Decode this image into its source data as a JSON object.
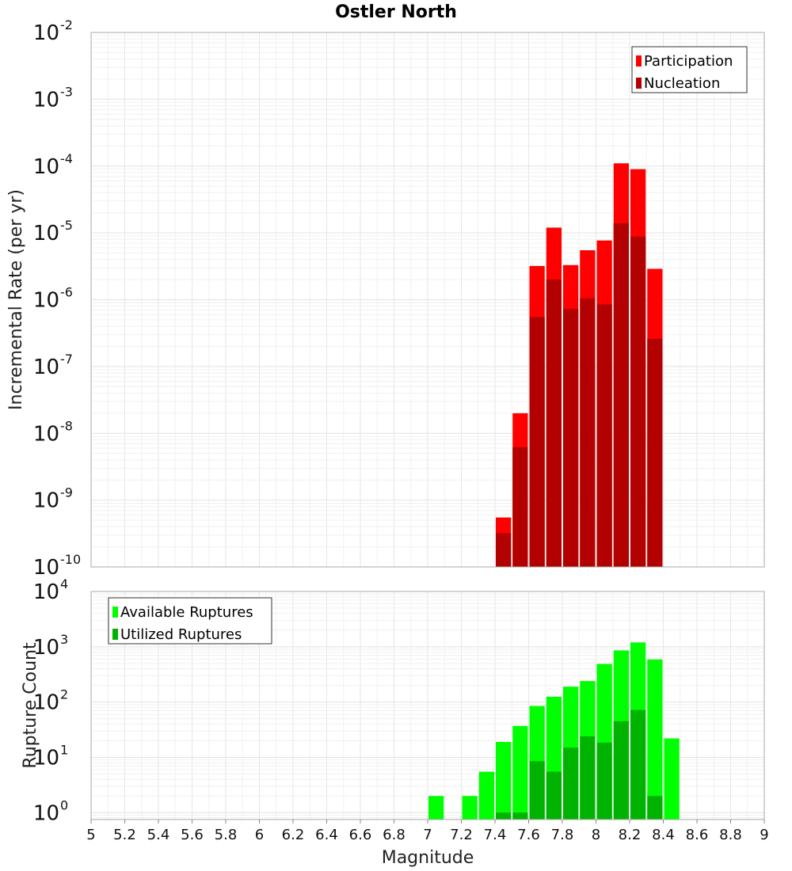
{
  "chart_data": [
    {
      "type": "bar",
      "title": "Ostler North",
      "xlabel": "",
      "ylabel": "Incremental Rate (per yr)",
      "yscale": "log",
      "ylim": [
        1e-10,
        0.01
      ],
      "xlim": [
        5,
        9
      ],
      "grid": true,
      "legend_position": "top-right",
      "yticks": [
        {
          "base": "10",
          "exp": "-10"
        },
        {
          "base": "10",
          "exp": "-9"
        },
        {
          "base": "10",
          "exp": "-8"
        },
        {
          "base": "10",
          "exp": "-7"
        },
        {
          "base": "10",
          "exp": "-6"
        },
        {
          "base": "10",
          "exp": "-5"
        },
        {
          "base": "10",
          "exp": "-4"
        },
        {
          "base": "10",
          "exp": "-3"
        },
        {
          "base": "10",
          "exp": "-2"
        }
      ],
      "x": [
        7.45,
        7.55,
        7.65,
        7.75,
        7.85,
        7.95,
        8.05,
        8.15,
        8.25,
        8.35
      ],
      "series": [
        {
          "name": "Participation",
          "color": "#ff0000",
          "values": [
            5.5e-10,
            2e-08,
            3.2e-06,
            1.2e-05,
            3.3e-06,
            5.5e-06,
            7.7e-06,
            0.00011,
            9e-05,
            2.9e-06
          ]
        },
        {
          "name": "Nucleation",
          "color": "#b30000",
          "values": [
            3.2e-10,
            6.2e-09,
            5.5e-07,
            2e-06,
            7.3e-07,
            1.05e-06,
            8.5e-07,
            1.4e-05,
            8.8e-06,
            2.6e-07
          ]
        }
      ]
    },
    {
      "type": "bar",
      "title": "",
      "xlabel": "Magnitude",
      "ylabel": "Rupture Count",
      "yscale": "log",
      "ylim": [
        0.75,
        10000
      ],
      "xlim": [
        5,
        9
      ],
      "grid": true,
      "legend_position": "top-left",
      "yticks": [
        {
          "base": "10",
          "exp": "0"
        },
        {
          "base": "10",
          "exp": "1"
        },
        {
          "base": "10",
          "exp": "2"
        },
        {
          "base": "10",
          "exp": "3"
        },
        {
          "base": "10",
          "exp": "4"
        }
      ],
      "xticks": [
        "5",
        "5.2",
        "5.4",
        "5.6",
        "5.8",
        "6",
        "6.2",
        "6.4",
        "6.6",
        "6.8",
        "7",
        "7.2",
        "7.4",
        "7.6",
        "7.8",
        "8",
        "8.2",
        "8.4",
        "8.6",
        "8.8",
        "9"
      ],
      "x": [
        7.05,
        7.25,
        7.35,
        7.45,
        7.55,
        7.65,
        7.75,
        7.85,
        7.95,
        8.05,
        8.15,
        8.25,
        8.35,
        8.45
      ],
      "series": [
        {
          "name": "Available Ruptures",
          "color": "#00ff00",
          "values": [
            2,
            2,
            5.5,
            19,
            37,
            85,
            125,
            190,
            240,
            490,
            860,
            1200,
            590,
            22
          ]
        },
        {
          "name": "Utilized Ruptures",
          "color": "#00b300",
          "values": [
            0,
            0,
            0,
            1,
            1,
            8.5,
            5.5,
            15,
            24,
            18.5,
            45,
            72,
            2,
            0
          ]
        }
      ]
    }
  ]
}
